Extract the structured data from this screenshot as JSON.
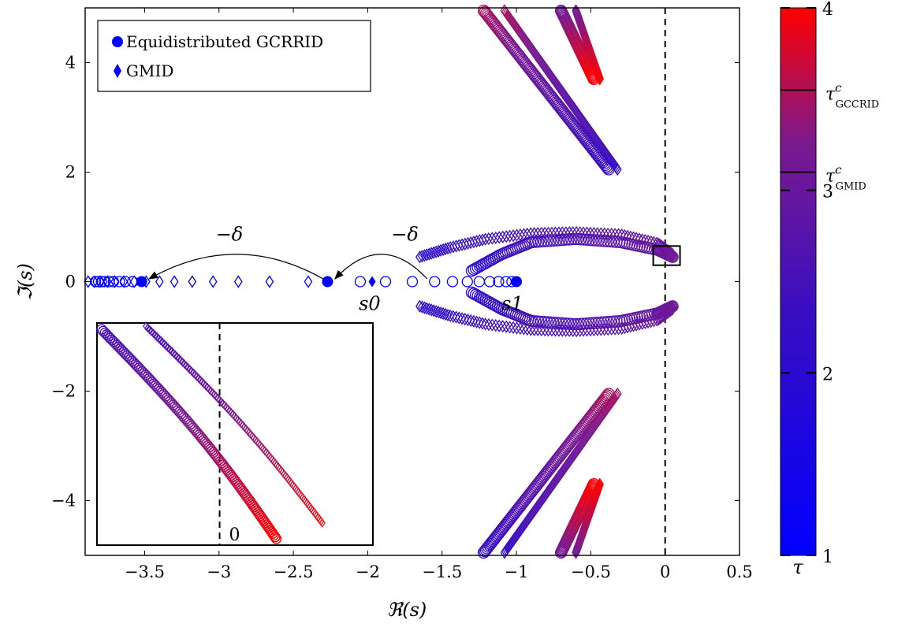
{
  "chart_data": {
    "type": "scatter",
    "xlabel": "ℜ(s)",
    "ylabel": "ℑ(s)",
    "xlim": [
      -3.9,
      0.5
    ],
    "ylim": [
      -5,
      5
    ],
    "xticks": [
      -3.5,
      -3,
      -2.5,
      -2,
      -1.5,
      -1,
      -0.5,
      0,
      0.5
    ],
    "yticks": [
      -4,
      -2,
      0,
      2,
      4
    ],
    "xtick_labels": [
      "−3.5",
      "−3",
      "−2.5",
      "−2",
      "−1.5",
      "−1",
      "−0.5",
      "0",
      "0.5"
    ],
    "ytick_labels": [
      "−4",
      "−2",
      "0",
      "2",
      "4"
    ],
    "legend": {
      "position": "top-left",
      "entries": [
        {
          "label": "Equidistributed GCRRID",
          "marker": "circle",
          "color": "#0000ff"
        },
        {
          "label": "GMID",
          "marker": "diamond",
          "color": "#0000ff"
        }
      ]
    },
    "series": [
      {
        "name": "Equidistributed GCRRID",
        "marker": "circle",
        "filled_points": {
          "x": [
            -2.27,
            -1.0,
            -3.52
          ],
          "y": [
            0,
            0,
            0
          ]
        },
        "hollow_points": {
          "x": [
            -2.05,
            -1.88,
            -1.7,
            -1.55,
            -1.43,
            -1.33,
            -1.25,
            -1.18,
            -1.12,
            -1.07,
            -1.03,
            -3.58,
            -3.63,
            -3.67,
            -3.71,
            -3.74,
            -3.77,
            -3.79,
            -3.81,
            -3.83
          ],
          "y": [
            0,
            0,
            0,
            0,
            0,
            0,
            0,
            0,
            0,
            0,
            0,
            0,
            0,
            0,
            0,
            0,
            0,
            0,
            0,
            0
          ]
        },
        "branches": {
          "upper_loop": {
            "x": [
              -1.3,
              -1.1,
              -0.9,
              -0.6,
              -0.3,
              -0.05,
              0.05
            ],
            "y": [
              0.2,
              0.5,
              0.72,
              0.78,
              0.72,
              0.58,
              0.45
            ]
          },
          "lower_loop": {
            "x": [
              -1.3,
              -1.1,
              -0.9,
              -0.6,
              -0.3,
              -0.05,
              0.05
            ],
            "y": [
              -0.2,
              -0.5,
              -0.72,
              -0.78,
              -0.72,
              -0.58,
              -0.45
            ]
          },
          "upper_far": {
            "x": [
              -1.22,
              -0.38
            ],
            "y": [
              4.95,
              2.05
            ]
          },
          "lower_far": {
            "x": [
              -1.22,
              -0.38
            ],
            "y": [
              -4.95,
              -2.05
            ]
          },
          "upper_top": {
            "x": [
              -0.7,
              -0.48
            ],
            "y": [
              4.95,
              3.7
            ]
          },
          "lower_top": {
            "x": [
              -0.7,
              -0.48
            ],
            "y": [
              -4.95,
              -3.7
            ]
          }
        }
      },
      {
        "name": "GMID",
        "marker": "diamond",
        "filled_points": {
          "x": [
            -1.97
          ],
          "y": [
            0
          ]
        },
        "hollow_points": {
          "x": [
            -3.88,
            -3.84,
            -3.8,
            -3.75,
            -3.7,
            -3.64,
            -3.57,
            -3.49,
            -3.4,
            -3.3,
            -3.18,
            -3.04,
            -2.87,
            -2.66,
            -2.4
          ],
          "y": [
            0,
            0,
            0,
            0,
            0,
            0,
            0,
            0,
            0,
            0,
            0,
            0,
            0,
            0,
            0
          ]
        },
        "branches": {
          "upper_loop": {
            "x": [
              -1.65,
              -1.45,
              -1.2,
              -0.9,
              -0.6,
              -0.3,
              -0.05,
              0.05
            ],
            "y": [
              0.45,
              0.62,
              0.78,
              0.88,
              0.9,
              0.86,
              0.7,
              0.5
            ]
          },
          "lower_loop": {
            "x": [
              -1.65,
              -1.45,
              -1.2,
              -0.9,
              -0.6,
              -0.3,
              -0.05,
              0.05
            ],
            "y": [
              -0.45,
              -0.62,
              -0.78,
              -0.88,
              -0.9,
              -0.86,
              -0.7,
              -0.5
            ]
          },
          "upper_far": {
            "x": [
              -1.08,
              -0.32
            ],
            "y": [
              4.95,
              2.05
            ]
          },
          "lower_far": {
            "x": [
              -1.08,
              -0.32
            ],
            "y": [
              -4.95,
              -2.05
            ]
          },
          "upper_top": {
            "x": [
              -0.6,
              -0.44
            ],
            "y": [
              4.95,
              3.7
            ]
          },
          "lower_top": {
            "x": [
              -0.6,
              -0.44
            ],
            "y": [
              -4.95,
              -3.7
            ]
          }
        }
      }
    ],
    "annotations": [
      {
        "text": "−δ",
        "from": [
          -1.6,
          0.05
        ],
        "to": [
          -2.22,
          0.05
        ],
        "label_at": [
          -1.75,
          0.75
        ]
      },
      {
        "text": "−δ",
        "from": [
          -2.3,
          0.05
        ],
        "to": [
          -3.47,
          0.05
        ],
        "label_at": [
          -2.93,
          0.75
        ]
      },
      {
        "text": "s0",
        "at": [
          -2.06,
          -0.2
        ]
      },
      {
        "text": "s1",
        "at": [
          -1.1,
          -0.2
        ]
      },
      {
        "text": "0",
        "at": "inset"
      }
    ],
    "reference_line": {
      "x": 0,
      "style": "dashed"
    },
    "zoom_box": {
      "x": [
        -0.08,
        0.1
      ],
      "y": [
        0.3,
        0.65
      ]
    },
    "colorbar": {
      "label": "τ",
      "range": [
        1,
        4
      ],
      "ticks": [
        1,
        2,
        3,
        4
      ],
      "tick_labels": [
        "1",
        "2",
        "3",
        "4"
      ],
      "colors": [
        "#0000ff",
        "#3a0ec0",
        "#7a1a90",
        "#ff0000"
      ],
      "markers": [
        {
          "value": 3.1,
          "label": "τ^c_GMID"
        },
        {
          "value": 3.55,
          "label": "τ^c_GCCRID"
        }
      ]
    }
  }
}
